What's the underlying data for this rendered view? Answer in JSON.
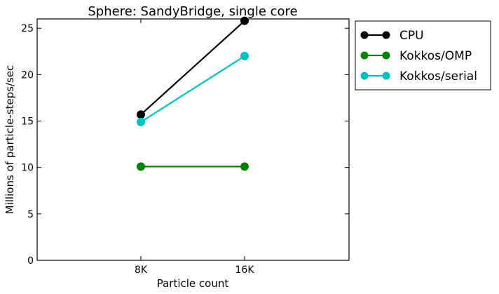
{
  "chart_data": {
    "type": "line",
    "title": "Sphere: SandyBridge, single core",
    "xlabel": "Particle count",
    "ylabel": "Millions of particle-steps/sec",
    "categories": [
      "8K",
      "16K"
    ],
    "ylim": [
      0,
      26
    ],
    "yticks": [
      0,
      5,
      10,
      15,
      20,
      25
    ],
    "grid": false,
    "legend_position": "outside-right-top",
    "series": [
      {
        "name": "CPU",
        "values": [
          15.7,
          25.8
        ],
        "color": "#000000"
      },
      {
        "name": "Kokkos/OMP",
        "values": [
          10.1,
          10.1
        ],
        "color": "#008000"
      },
      {
        "name": "Kokkos/serial",
        "values": [
          14.9,
          22.0
        ],
        "color": "#00bfbf"
      }
    ]
  }
}
